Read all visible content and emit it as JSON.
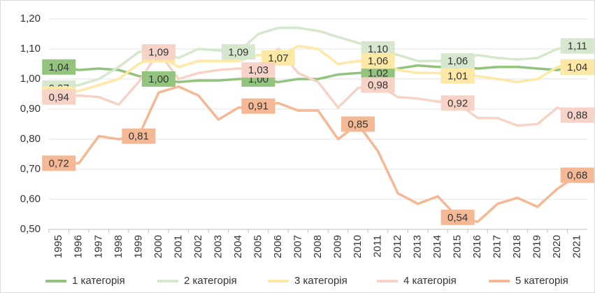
{
  "chart_data": {
    "type": "line",
    "categories": [
      "1995",
      "1996",
      "1997",
      "1998",
      "1999",
      "2000",
      "2001",
      "2002",
      "2003",
      "2004",
      "2005",
      "2006",
      "2007",
      "2008",
      "2009",
      "2010",
      "2011",
      "2012",
      "2013",
      "2014",
      "2015",
      "2016",
      "2017",
      "2018",
      "2019",
      "2020",
      "2021"
    ],
    "ylim": [
      0.5,
      1.2
    ],
    "yticks": [
      {
        "value": 0.5,
        "label": "0,50"
      },
      {
        "value": 0.6,
        "label": "0,60"
      },
      {
        "value": 0.7,
        "label": "0,70"
      },
      {
        "value": 0.8,
        "label": "0,80"
      },
      {
        "value": 0.9,
        "label": "0,90"
      },
      {
        "value": 1.0,
        "label": "1,00"
      },
      {
        "value": 1.1,
        "label": "1,10"
      },
      {
        "value": 1.2,
        "label": "1,20"
      }
    ],
    "grid": true,
    "legend": "bottom",
    "series": [
      {
        "name": "1 категорія",
        "color": "#93c47d",
        "values": [
          1.04,
          1.03,
          1.035,
          1.03,
          1.01,
          1.0,
          0.99,
          0.995,
          0.995,
          1.0,
          1.0,
          0.99,
          1.0,
          1.0,
          1.015,
          1.02,
          1.02,
          1.035,
          1.045,
          1.04,
          1.04,
          1.035,
          1.04,
          1.04,
          1.035,
          1.03,
          1.04
        ],
        "value_labels": [
          "1,04",
          null,
          null,
          null,
          null,
          "1,00",
          null,
          null,
          null,
          null,
          "1,00",
          null,
          null,
          null,
          null,
          null,
          "1,02",
          null,
          null,
          null,
          "1,04",
          null,
          null,
          null,
          null,
          null,
          "1,04"
        ]
      },
      {
        "name": "2 категорія",
        "color": "#d5e8cd",
        "values": [
          0.97,
          0.98,
          1.0,
          1.04,
          1.09,
          1.09,
          1.07,
          1.1,
          1.095,
          1.09,
          1.15,
          1.17,
          1.17,
          1.16,
          1.14,
          1.12,
          1.1,
          1.08,
          1.06,
          1.06,
          1.06,
          1.08,
          1.07,
          1.065,
          1.07,
          1.1,
          1.11
        ],
        "value_labels": [
          "0,97",
          null,
          null,
          null,
          null,
          "1,09",
          null,
          null,
          null,
          "1,09",
          null,
          null,
          null,
          null,
          null,
          null,
          "1,10",
          null,
          null,
          null,
          "1,06",
          null,
          null,
          null,
          null,
          null,
          "1,11"
        ]
      },
      {
        "name": "3 категорія",
        "color": "#fde8a6",
        "values": [
          0.95,
          0.96,
          0.98,
          1.0,
          1.05,
          1.08,
          1.04,
          1.06,
          1.06,
          1.06,
          1.08,
          1.07,
          1.11,
          1.1,
          1.05,
          1.06,
          1.06,
          1.03,
          1.02,
          1.02,
          1.01,
          1.01,
          1.0,
          0.99,
          1.0,
          1.04,
          1.04
        ],
        "value_labels": [
          "0,95",
          null,
          null,
          null,
          null,
          "1,08",
          null,
          null,
          null,
          null,
          null,
          "1,07",
          null,
          null,
          null,
          null,
          "1,06",
          null,
          null,
          null,
          "1,01",
          null,
          null,
          null,
          null,
          null,
          "1,04"
        ]
      },
      {
        "name": "4 категорія",
        "color": "#f6d3c6",
        "values": [
          0.94,
          0.945,
          0.94,
          0.915,
          0.99,
          1.09,
          1.0,
          1.02,
          1.03,
          1.035,
          1.03,
          1.1,
          1.02,
          0.99,
          0.905,
          0.97,
          0.98,
          0.94,
          0.935,
          0.925,
          0.92,
          0.87,
          0.87,
          0.845,
          0.85,
          0.905,
          0.88
        ],
        "value_labels": [
          "0,94",
          null,
          null,
          null,
          null,
          "1,09",
          null,
          null,
          null,
          null,
          "1,03",
          null,
          null,
          null,
          null,
          null,
          "0,98",
          null,
          null,
          null,
          "0,92",
          null,
          null,
          null,
          null,
          null,
          "0,88"
        ]
      },
      {
        "name": "5 категорія",
        "color": "#f4b894",
        "values": [
          0.72,
          0.72,
          0.81,
          0.8,
          0.81,
          0.955,
          0.975,
          0.945,
          0.865,
          0.905,
          0.91,
          0.92,
          0.895,
          0.895,
          0.8,
          0.85,
          0.76,
          0.62,
          0.585,
          0.61,
          0.54,
          0.525,
          0.585,
          0.605,
          0.575,
          0.635,
          0.68
        ],
        "value_labels": [
          "0,72",
          null,
          null,
          null,
          "0,81",
          null,
          null,
          null,
          null,
          null,
          "0,91",
          null,
          null,
          null,
          null,
          "0,85",
          null,
          null,
          null,
          null,
          "0,54",
          null,
          null,
          null,
          null,
          null,
          "0,68"
        ]
      }
    ]
  }
}
